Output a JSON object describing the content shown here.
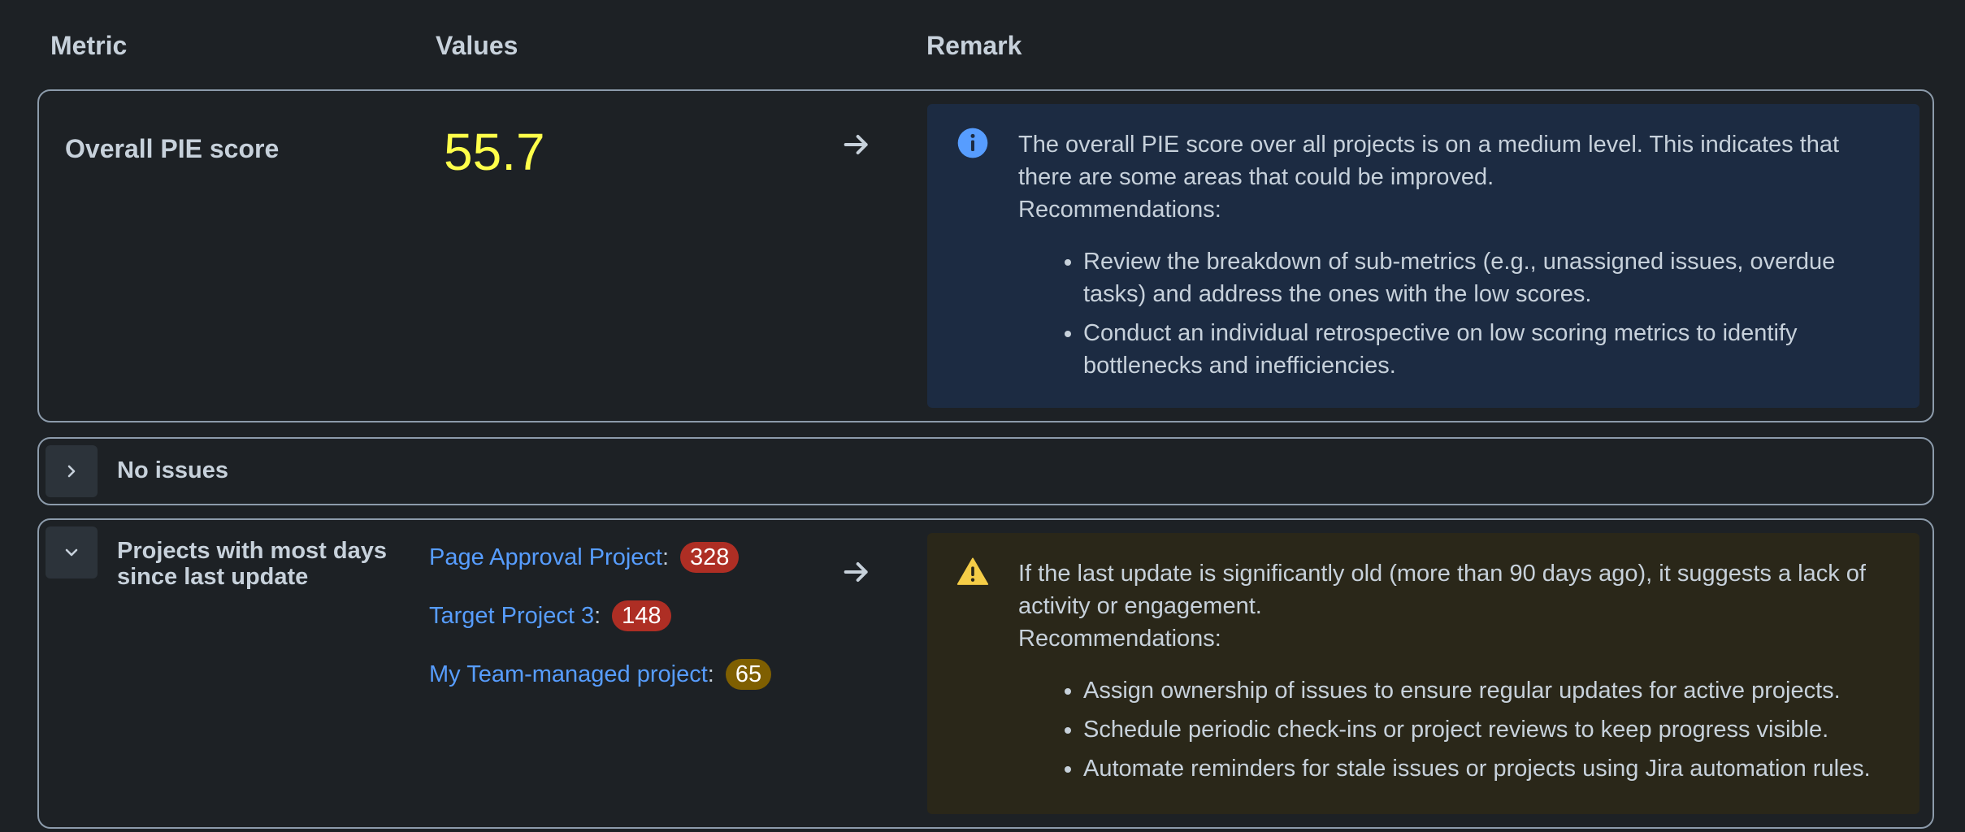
{
  "headers": {
    "metric": "Metric",
    "values": "Values",
    "remark": "Remark"
  },
  "overall": {
    "title": "Overall PIE score",
    "score": "55.7",
    "score_color": "#ffff4a",
    "icon": "info-icon",
    "remark_text": "The overall PIE score over all projects is on a medium level. This indicates that there are some areas that could be improved.",
    "recommendations_label": "Recommendations:",
    "recommendations": [
      "Review the breakdown of sub-metrics (e.g., unassigned issues, overdue tasks) and address the ones with the low scores.",
      "Conduct an individual retrospective on low scoring metrics to identify bottlenecks and inefficiencies."
    ]
  },
  "no_issues": {
    "title": "No issues",
    "icon": "chevron-right-icon"
  },
  "stale_projects": {
    "title": "Projects with most days since last update",
    "icon": "chevron-down-icon",
    "projects": [
      {
        "name": "Page Approval Project",
        "value": "328",
        "badge_color": "#ae2e24"
      },
      {
        "name": "Target Project 3",
        "value": "148",
        "badge_color": "#ae2e24"
      },
      {
        "name": "My Team-managed project",
        "value": "65",
        "badge_color": "#7f5f01"
      }
    ],
    "remark_icon": "warning-icon",
    "remark_text": "If the last update is significantly old (more than 90 days ago), it suggests a lack of activity or engagement.",
    "recommendations_label": "Recommendations:",
    "recommendations": [
      "Assign ownership of issues to ensure regular updates for active projects.",
      "Schedule periodic check-ins or project reviews to keep progress visible.",
      "Automate reminders for stale issues or projects using Jira automation rules."
    ]
  },
  "colors": {
    "background": "#1d2125",
    "link": "#579dff",
    "info_panel": "#1c2b42",
    "warning_panel": "#2a2719"
  }
}
